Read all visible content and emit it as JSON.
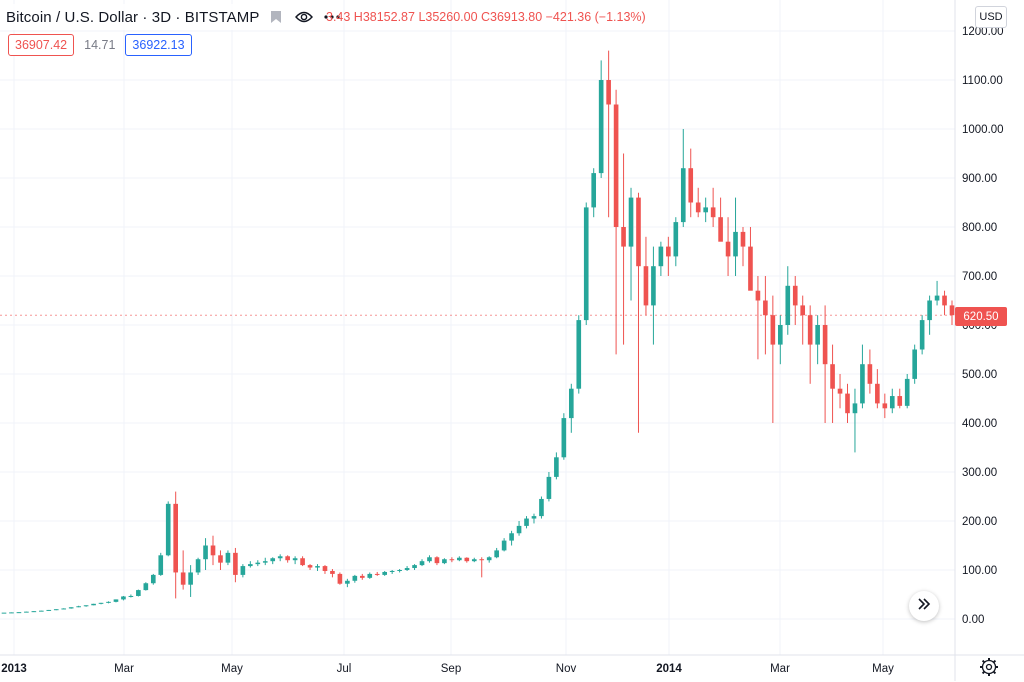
{
  "legend": {
    "title": "Bitcoin / U.S. Dollar · 3D · BITSTAMP",
    "ohlc_text": "O37334.43 H38152.87 L35260.00 C36913.80 −421.36 (−1.13%)",
    "ohlc_visible": "3.43 H38152.87 L35260.00 C36913.80 −421.36 (−1.13%)",
    "bid": "36907.42",
    "spread": "14.71",
    "ask": "36922.13",
    "icons": [
      "eye-icon",
      "more-icon",
      "flag-icon"
    ]
  },
  "currency_button": "USD",
  "last_price": "620.50",
  "colors": {
    "up": "#26a69a",
    "down": "#ef5350",
    "grid": "#f0f3fa",
    "text": "#131722",
    "axis_text": "#131722"
  },
  "chart_data": {
    "type": "candlestick",
    "y_ticks": [
      "0.00",
      "100.00",
      "200.00",
      "300.00",
      "400.00",
      "500.00",
      "600.00",
      "700.00",
      "800.00",
      "900.00",
      "1000.00",
      "1100.00",
      "1200.00"
    ],
    "y_tick_values": [
      0,
      100,
      200,
      300,
      400,
      500,
      600,
      700,
      800,
      900,
      1000,
      1100,
      1200
    ],
    "x_ticks": [
      "2013",
      "Mar",
      "May",
      "Jul",
      "Sep",
      "Nov",
      "2014",
      "Mar",
      "May"
    ],
    "ylim": [
      -30,
      1230
    ],
    "candles": [
      [
        13,
        13,
        13,
        13
      ],
      [
        13,
        13.5,
        13,
        13.5
      ],
      [
        13.5,
        14,
        13.5,
        14
      ],
      [
        14,
        15,
        14,
        15
      ],
      [
        15,
        16,
        15,
        16
      ],
      [
        16,
        17,
        15.5,
        17
      ],
      [
        17,
        18.5,
        17,
        18.5
      ],
      [
        18.5,
        20,
        18,
        20
      ],
      [
        20,
        22,
        20,
        21.5
      ],
      [
        21.5,
        24,
        21,
        24
      ],
      [
        24,
        27,
        24,
        26
      ],
      [
        26,
        28,
        25,
        28
      ],
      [
        28,
        31,
        28,
        31
      ],
      [
        31,
        33,
        30,
        33
      ],
      [
        33,
        36,
        32,
        35
      ],
      [
        35,
        40,
        34,
        40
      ],
      [
        40,
        47,
        38,
        46
      ],
      [
        46,
        50,
        44,
        47
      ],
      [
        47,
        60,
        46,
        59
      ],
      [
        59,
        75,
        58,
        73
      ],
      [
        73,
        92,
        70,
        90
      ],
      [
        90,
        135,
        88,
        130
      ],
      [
        130,
        240,
        128,
        235
      ],
      [
        235,
        260,
        42,
        95
      ],
      [
        95,
        140,
        60,
        70
      ],
      [
        70,
        110,
        45,
        95
      ],
      [
        95,
        125,
        90,
        122
      ],
      [
        122,
        165,
        100,
        150
      ],
      [
        150,
        170,
        110,
        130
      ],
      [
        130,
        140,
        100,
        115
      ],
      [
        115,
        140,
        110,
        135
      ],
      [
        135,
        145,
        75,
        90
      ],
      [
        90,
        112,
        85,
        108
      ],
      [
        108,
        118,
        105,
        112
      ],
      [
        112,
        120,
        108,
        115
      ],
      [
        115,
        125,
        110,
        118
      ],
      [
        118,
        126,
        112,
        124
      ],
      [
        124,
        132,
        118,
        128
      ],
      [
        128,
        130,
        115,
        120
      ],
      [
        120,
        128,
        112,
        124
      ],
      [
        124,
        128,
        108,
        110
      ],
      [
        110,
        112,
        100,
        105
      ],
      [
        105,
        112,
        98,
        108
      ],
      [
        108,
        110,
        92,
        98
      ],
      [
        98,
        102,
        85,
        92
      ],
      [
        92,
        95,
        70,
        72
      ],
      [
        72,
        82,
        65,
        78
      ],
      [
        78,
        90,
        74,
        88
      ],
      [
        88,
        92,
        80,
        84
      ],
      [
        84,
        95,
        82,
        92
      ],
      [
        92,
        96,
        88,
        90
      ],
      [
        90,
        98,
        88,
        96
      ],
      [
        96,
        100,
        92,
        98
      ],
      [
        98,
        102,
        95,
        100
      ],
      [
        100,
        108,
        98,
        104
      ],
      [
        104,
        112,
        100,
        110
      ],
      [
        110,
        122,
        108,
        118
      ],
      [
        118,
        130,
        115,
        126
      ],
      [
        126,
        128,
        110,
        114
      ],
      [
        114,
        124,
        112,
        122
      ],
      [
        122,
        126,
        116,
        120
      ],
      [
        120,
        128,
        118,
        125
      ],
      [
        125,
        126,
        115,
        118
      ],
      [
        118,
        125,
        116,
        122
      ],
      [
        122,
        126,
        85,
        120
      ],
      [
        120,
        128,
        115,
        126
      ],
      [
        126,
        145,
        124,
        140
      ],
      [
        140,
        165,
        138,
        160
      ],
      [
        160,
        180,
        150,
        175
      ],
      [
        175,
        200,
        170,
        190
      ],
      [
        190,
        210,
        185,
        205
      ],
      [
        205,
        215,
        195,
        210
      ],
      [
        210,
        250,
        205,
        245
      ],
      [
        245,
        300,
        240,
        290
      ],
      [
        290,
        340,
        285,
        330
      ],
      [
        330,
        420,
        325,
        410
      ],
      [
        410,
        480,
        380,
        470
      ],
      [
        470,
        620,
        460,
        610
      ],
      [
        610,
        850,
        600,
        840
      ],
      [
        840,
        920,
        820,
        910
      ],
      [
        910,
        1140,
        900,
        1100
      ],
      [
        1100,
        1160,
        820,
        1050
      ],
      [
        1050,
        1080,
        540,
        800
      ],
      [
        800,
        950,
        560,
        760
      ],
      [
        760,
        880,
        650,
        860
      ],
      [
        860,
        870,
        380,
        720
      ],
      [
        720,
        780,
        620,
        640
      ],
      [
        640,
        760,
        560,
        720
      ],
      [
        720,
        770,
        700,
        760
      ],
      [
        760,
        780,
        700,
        740
      ],
      [
        740,
        820,
        720,
        810
      ],
      [
        810,
        1000,
        800,
        920
      ],
      [
        920,
        960,
        820,
        850
      ],
      [
        850,
        880,
        820,
        830
      ],
      [
        830,
        860,
        810,
        840
      ],
      [
        840,
        880,
        800,
        820
      ],
      [
        820,
        860,
        780,
        770
      ],
      [
        770,
        820,
        700,
        740
      ],
      [
        740,
        860,
        700,
        790
      ],
      [
        790,
        800,
        720,
        760
      ],
      [
        760,
        800,
        680,
        670
      ],
      [
        670,
        700,
        530,
        650
      ],
      [
        650,
        700,
        540,
        620
      ],
      [
        620,
        660,
        400,
        560
      ],
      [
        560,
        620,
        520,
        600
      ],
      [
        600,
        720,
        580,
        680
      ],
      [
        680,
        700,
        600,
        640
      ],
      [
        640,
        660,
        560,
        620
      ],
      [
        620,
        640,
        480,
        560
      ],
      [
        560,
        620,
        520,
        600
      ],
      [
        600,
        640,
        400,
        520
      ],
      [
        520,
        560,
        400,
        470
      ],
      [
        470,
        500,
        430,
        460
      ],
      [
        460,
        480,
        400,
        420
      ],
      [
        420,
        470,
        340,
        440
      ],
      [
        440,
        560,
        430,
        520
      ],
      [
        520,
        550,
        460,
        480
      ],
      [
        480,
        510,
        430,
        440
      ],
      [
        440,
        460,
        410,
        430
      ],
      [
        430,
        470,
        420,
        455
      ],
      [
        455,
        470,
        430,
        435
      ],
      [
        435,
        500,
        430,
        490
      ],
      [
        490,
        560,
        480,
        550
      ],
      [
        550,
        620,
        540,
        610
      ],
      [
        610,
        660,
        580,
        650
      ],
      [
        650,
        690,
        640,
        660
      ],
      [
        660,
        670,
        620,
        640
      ],
      [
        640,
        650,
        600,
        620
      ]
    ]
  }
}
